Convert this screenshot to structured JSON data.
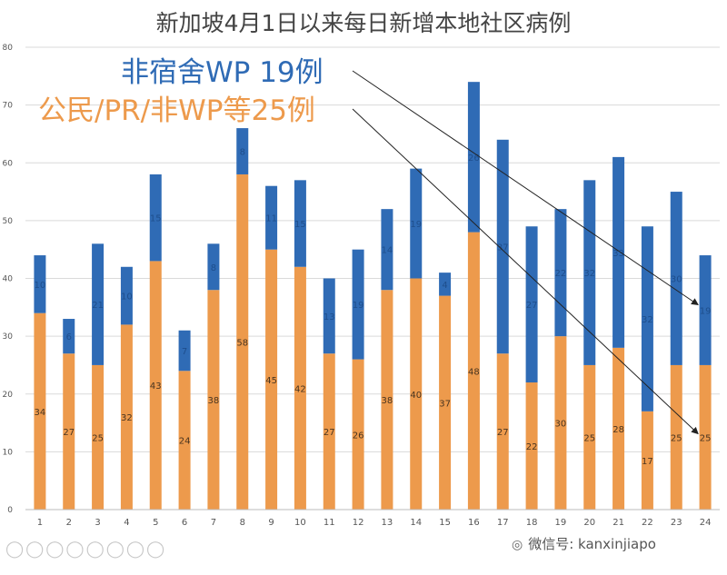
{
  "colors": {
    "bottom": "#ED9A4C",
    "top": "#2F6BB5",
    "grid": "#DADADA",
    "tick_text": "#555555",
    "label_on_blue": "#1E4E8C",
    "label_on_orange": "#4A3520",
    "arrow": "#222222"
  },
  "chart_data": {
    "type": "bar",
    "stacked": true,
    "title": "新加坡4月1日以来每日新增本地社区病例",
    "categories": [
      "1",
      "2",
      "3",
      "4",
      "5",
      "6",
      "7",
      "8",
      "9",
      "10",
      "11",
      "12",
      "13",
      "14",
      "15",
      "16",
      "17",
      "18",
      "19",
      "20",
      "21",
      "22",
      "23",
      "24"
    ],
    "series": [
      {
        "values": [
          34,
          27,
          25,
          32,
          43,
          24,
          38,
          58,
          45,
          42,
          27,
          26,
          38,
          40,
          37,
          48,
          27,
          22,
          30,
          25,
          28,
          17,
          25,
          25
        ]
      },
      {
        "values": [
          10,
          6,
          21,
          10,
          15,
          7,
          8,
          8,
          11,
          15,
          13,
          19,
          14,
          19,
          4,
          26,
          37,
          27,
          22,
          32,
          33,
          32,
          30,
          19
        ]
      }
    ],
    "ylim": [
      0,
      80
    ],
    "yticks": [
      "0",
      "10",
      "20",
      "30",
      "40",
      "50",
      "60",
      "70",
      "80"
    ],
    "xlabel": "",
    "ylabel": "",
    "grid": true,
    "annotations": [
      {
        "text": "非宿舍WP 19例",
        "color": "#2F6BB5",
        "points_to": "top series, category 24"
      },
      {
        "text": "公民/PR/非WP等25例",
        "color": "#ED9A4C",
        "points_to": "bottom series, category 24"
      }
    ]
  },
  "watermark": {
    "icon": "wechat-icon",
    "text": "微信号: kanxinjiapo"
  }
}
